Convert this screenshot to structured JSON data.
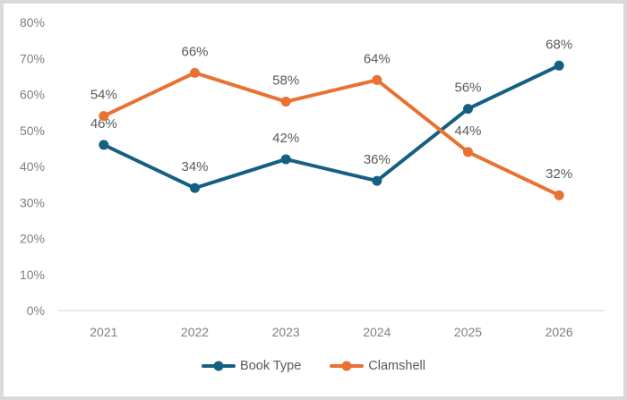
{
  "chart_data": {
    "type": "line",
    "title": "",
    "xlabel": "",
    "ylabel": "",
    "categories": [
      "2021",
      "2022",
      "2023",
      "2024",
      "2025",
      "2026"
    ],
    "series": [
      {
        "name": "Book Type",
        "color": "#156082",
        "values": [
          46,
          34,
          42,
          36,
          56,
          68
        ]
      },
      {
        "name": "Clamshell",
        "color": "#E97132",
        "values": [
          54,
          66,
          58,
          64,
          44,
          32
        ]
      }
    ],
    "data_labels": [
      [
        "46%",
        "34%",
        "42%",
        "36%",
        "56%",
        "68%"
      ],
      [
        "54%",
        "66%",
        "58%",
        "64%",
        "44%",
        "32%"
      ]
    ],
    "ylim": [
      0,
      80
    ],
    "ytick_step": 10,
    "ytick_labels": [
      "0%",
      "10%",
      "20%",
      "30%",
      "40%",
      "50%",
      "60%",
      "70%",
      "80%"
    ],
    "grid": false,
    "marker": "circle",
    "legend_position": "bottom"
  },
  "style": {
    "frame_color": "#D9D9D9",
    "plot_background": "#FFFFFF",
    "axis_line_color": "#D9D9D9",
    "axis_label_color": "#7F7F7F",
    "data_label_color": "#595959",
    "legend_label_color": "#595959"
  }
}
